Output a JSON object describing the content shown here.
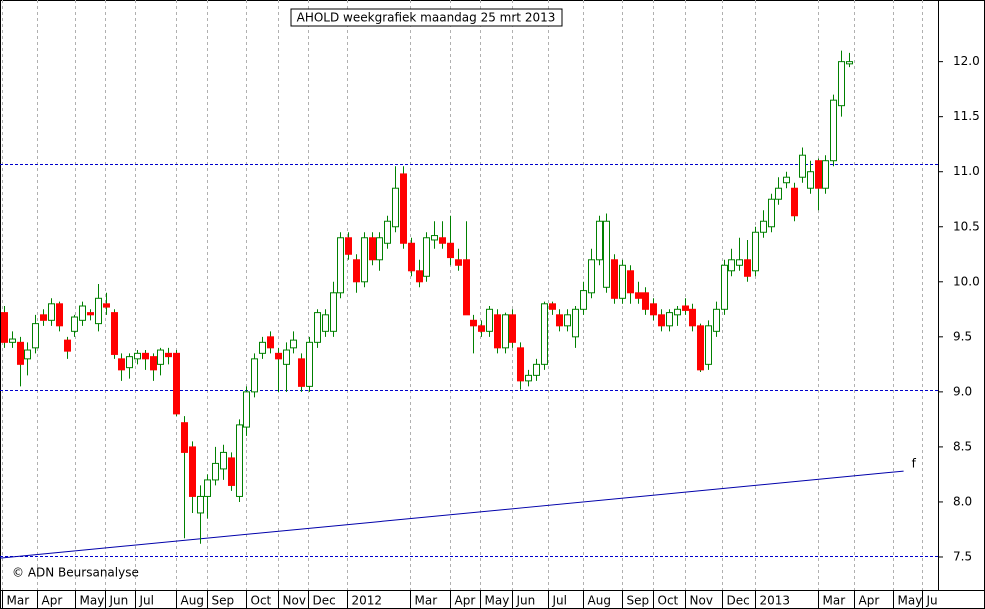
{
  "chart_data": {
    "type": "candlestick",
    "title": "AHOLD weekgrafiek maandag 25 mrt 2013",
    "credit": "© ADN Beursanalyse",
    "up_color": "#008000",
    "down_color": "#ff0000",
    "x": [
      0,
      1,
      2,
      3,
      4,
      5,
      6,
      7,
      8,
      9,
      10,
      11,
      12,
      13,
      14,
      15,
      16,
      17,
      18,
      19,
      20,
      21,
      22,
      23,
      24,
      25,
      26,
      27,
      28,
      29,
      30,
      31,
      32,
      33,
      34,
      35,
      36,
      37,
      38,
      39,
      40,
      41,
      42,
      43,
      44,
      45,
      46,
      47,
      48,
      49,
      50,
      51,
      52,
      53,
      54,
      55,
      56,
      57,
      58,
      59,
      60,
      61,
      62,
      63,
      64,
      65,
      66,
      67,
      68,
      69,
      70,
      71,
      72,
      73,
      74,
      75,
      76,
      77,
      78,
      79,
      80,
      81,
      82,
      83,
      84,
      85,
      86,
      87,
      88,
      89,
      90,
      91,
      92,
      93,
      94,
      95,
      96,
      97,
      98,
      99,
      100,
      101,
      102,
      103,
      104,
      105,
      106,
      107,
      108
    ],
    "open": [
      9.72,
      9.45,
      9.45,
      9.3,
      9.4,
      9.7,
      9.65,
      9.8,
      9.47,
      9.55,
      9.65,
      9.72,
      9.62,
      9.8,
      9.72,
      9.3,
      9.22,
      9.3,
      9.35,
      9.32,
      9.25,
      9.35,
      9.35,
      8.72,
      8.5,
      7.9,
      8.05,
      8.2,
      8.3,
      8.4,
      8.05,
      8.68,
      9.0,
      9.35,
      9.5,
      9.35,
      9.25,
      9.4,
      9.3,
      9.05,
      9.45,
      9.55,
      9.55,
      9.9,
      10.4,
      10.2,
      10.0,
      10.4,
      10.2,
      10.35,
      10.5,
      10.98,
      10.35,
      10.1,
      10.05,
      10.38,
      10.4,
      10.35,
      10.2,
      10.2,
      9.65,
      9.6,
      9.55,
      9.7,
      9.4,
      9.7,
      9.4,
      9.1,
      9.15,
      9.25,
      9.8,
      9.7,
      9.6,
      9.5,
      9.75,
      9.9,
      10.2,
      9.95,
      10.2,
      9.85,
      10.1,
      9.9,
      9.9,
      9.8,
      9.7,
      9.6,
      9.7,
      9.78,
      9.75,
      9.6,
      9.25,
      9.55,
      9.75,
      10.1,
      10.15,
      10.2,
      10.1,
      10.45,
      10.5,
      10.75,
      10.9,
      10.85,
      10.95,
      10.85,
      11.1,
      10.85,
      11.1,
      11.6,
      11.98
    ],
    "high": [
      9.78,
      9.55,
      9.5,
      9.45,
      9.7,
      9.75,
      9.85,
      9.82,
      9.5,
      9.7,
      9.82,
      9.75,
      9.98,
      9.9,
      9.75,
      9.35,
      9.35,
      9.38,
      9.38,
      9.35,
      9.4,
      9.4,
      9.38,
      8.78,
      8.55,
      8.15,
      8.25,
      8.5,
      8.52,
      8.45,
      8.75,
      9.05,
      9.35,
      9.5,
      9.55,
      9.4,
      9.45,
      9.55,
      9.35,
      9.5,
      9.75,
      9.75,
      10.0,
      10.45,
      10.45,
      10.25,
      10.45,
      10.45,
      10.45,
      10.6,
      11.05,
      11.05,
      10.4,
      10.2,
      10.45,
      10.55,
      10.55,
      10.6,
      10.3,
      10.55,
      9.7,
      9.65,
      9.78,
      9.75,
      9.72,
      9.75,
      9.45,
      9.2,
      9.3,
      9.82,
      9.82,
      9.75,
      9.75,
      9.78,
      10.0,
      10.3,
      10.6,
      10.62,
      10.25,
      10.2,
      10.15,
      10.0,
      9.95,
      9.85,
      9.75,
      9.75,
      9.78,
      9.85,
      9.8,
      9.62,
      9.65,
      9.82,
      10.2,
      10.3,
      10.4,
      10.38,
      10.5,
      10.65,
      10.8,
      10.95,
      11.0,
      10.9,
      11.22,
      11.1,
      11.12,
      11.15,
      11.7,
      12.1,
      12.08
    ],
    "low": [
      9.4,
      9.4,
      9.05,
      9.15,
      9.35,
      9.6,
      9.6,
      9.55,
      9.3,
      9.5,
      9.6,
      9.65,
      9.55,
      9.7,
      9.3,
      9.1,
      9.12,
      9.25,
      9.2,
      9.1,
      9.15,
      9.25,
      8.78,
      7.67,
      7.9,
      7.62,
      7.85,
      8.15,
      8.2,
      8.1,
      8.0,
      8.6,
      8.95,
      9.3,
      9.35,
      9.0,
      9.0,
      9.35,
      9.0,
      9.0,
      9.4,
      9.5,
      9.5,
      9.85,
      10.2,
      9.9,
      9.95,
      10.15,
      10.1,
      10.3,
      10.45,
      10.3,
      10.05,
      9.95,
      10.0,
      10.3,
      10.3,
      10.15,
      10.1,
      9.7,
      9.35,
      9.5,
      9.5,
      9.35,
      9.35,
      9.4,
      9.02,
      9.05,
      9.1,
      9.2,
      9.7,
      9.55,
      9.55,
      9.4,
      9.7,
      9.85,
      10.15,
      9.9,
      9.8,
      9.8,
      9.8,
      9.8,
      9.7,
      9.65,
      9.55,
      9.55,
      9.6,
      9.7,
      9.55,
      9.18,
      9.2,
      9.5,
      9.7,
      10.05,
      10.1,
      10.0,
      10.05,
      10.4,
      10.45,
      10.7,
      10.85,
      10.55,
      10.9,
      10.8,
      10.65,
      10.8,
      11.05,
      11.5,
      11.95
    ],
    "close": [
      9.45,
      9.48,
      9.25,
      9.38,
      9.62,
      9.65,
      9.8,
      9.6,
      9.37,
      9.68,
      9.78,
      9.7,
      9.85,
      9.77,
      9.34,
      9.2,
      9.32,
      9.35,
      9.3,
      9.2,
      9.38,
      9.32,
      8.8,
      8.45,
      8.05,
      8.05,
      8.2,
      8.35,
      8.45,
      8.15,
      8.7,
      9.0,
      9.3,
      9.45,
      9.4,
      9.3,
      9.38,
      9.47,
      9.05,
      9.45,
      9.72,
      9.7,
      9.9,
      10.4,
      10.25,
      10.0,
      10.4,
      10.2,
      10.4,
      10.55,
      10.85,
      10.35,
      10.1,
      10.0,
      10.4,
      10.42,
      10.35,
      10.22,
      10.15,
      9.7,
      9.6,
      9.55,
      9.75,
      9.4,
      9.7,
      9.45,
      9.1,
      9.15,
      9.25,
      9.8,
      9.75,
      9.6,
      9.7,
      9.75,
      9.92,
      10.2,
      10.55,
      10.55,
      9.85,
      10.15,
      9.9,
      9.85,
      9.75,
      9.7,
      9.6,
      9.72,
      9.75,
      9.74,
      9.6,
      9.2,
      9.6,
      9.75,
      10.15,
      10.2,
      10.2,
      10.05,
      10.45,
      10.55,
      10.75,
      10.85,
      10.95,
      10.6,
      11.15,
      11.0,
      10.85,
      11.1,
      11.65,
      12.0,
      12.0
    ],
    "xlim": [
      -0.51,
      119.4
    ],
    "ylim": [
      7.2,
      12.56
    ],
    "yticks": [
      {
        "value": 7.5,
        "label": "7.5"
      },
      {
        "value": 8,
        "label": "8.0"
      },
      {
        "value": 8.5,
        "label": "8.5"
      },
      {
        "value": 9,
        "label": "9.0"
      },
      {
        "value": 9.5,
        "label": "9.5"
      },
      {
        "value": 10,
        "label": "10.0"
      },
      {
        "value": 10.5,
        "label": "10.5"
      },
      {
        "value": 11,
        "label": "11.0"
      },
      {
        "value": 11.5,
        "label": "11.5"
      },
      {
        "value": 12,
        "label": "12.0"
      }
    ],
    "xticks": [
      {
        "value": -0.26,
        "label": "Mar"
      },
      {
        "value": 4.2,
        "label": "Apr"
      },
      {
        "value": 9.1,
        "label": "May"
      },
      {
        "value": 12.9,
        "label": "Jun"
      },
      {
        "value": 16.8,
        "label": "Jul"
      },
      {
        "value": 22,
        "label": "Aug"
      },
      {
        "value": 26,
        "label": "Sep"
      },
      {
        "value": 30.9,
        "label": "Oct"
      },
      {
        "value": 35,
        "label": "Nov"
      },
      {
        "value": 38.9,
        "label": "Dec"
      },
      {
        "value": 43.9,
        "label": "2012"
      },
      {
        "value": 51.9,
        "label": "Mar"
      },
      {
        "value": 57,
        "label": "Apr"
      },
      {
        "value": 60.9,
        "label": "May"
      },
      {
        "value": 65,
        "label": "Jun"
      },
      {
        "value": 69.6,
        "label": "Jul"
      },
      {
        "value": 74,
        "label": "Aug"
      },
      {
        "value": 79,
        "label": "Sep"
      },
      {
        "value": 83,
        "label": "Oct"
      },
      {
        "value": 87.1,
        "label": "Nov"
      },
      {
        "value": 91.8,
        "label": "Dec"
      },
      {
        "value": 96,
        "label": "2013"
      },
      {
        "value": 104.1,
        "label": "Mar"
      },
      {
        "value": 108.6,
        "label": "Apr"
      },
      {
        "value": 113.7,
        "label": "May"
      },
      {
        "value": 117.4,
        "label": "Ju"
      }
    ],
    "grid": true,
    "hlines": [
      {
        "value": 11.07,
        "color": "#0000cc"
      },
      {
        "value": 9.02,
        "color": "#0000cc"
      },
      {
        "value": 7.51,
        "color": "#0000cc"
      }
    ],
    "trendline": {
      "x": [
        -0.5,
        115
      ],
      "y": [
        7.49,
        8.28
      ],
      "color": "#0000aa",
      "label": "f"
    }
  }
}
